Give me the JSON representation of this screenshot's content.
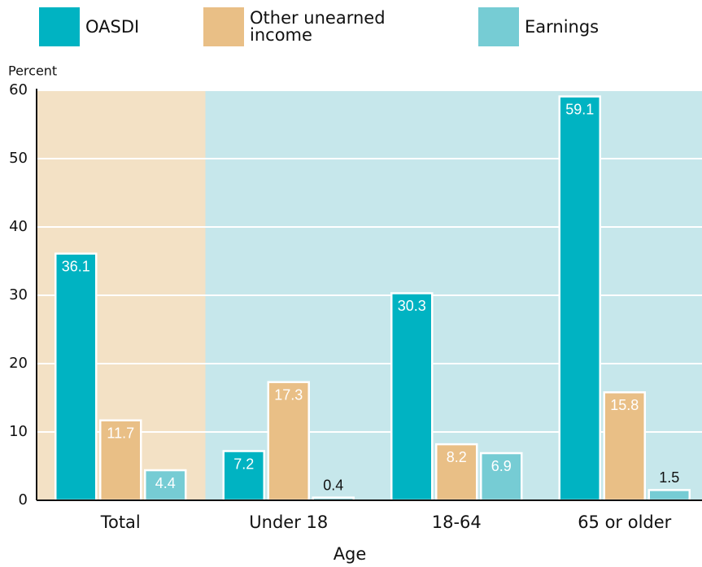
{
  "chart_data": {
    "type": "bar",
    "categories": [
      "Total",
      "Under 18",
      "18-64",
      "65 or older"
    ],
    "series": [
      {
        "name": "OASDI",
        "color": "#00b3c2",
        "values": [
          36.1,
          7.2,
          30.3,
          59.1
        ]
      },
      {
        "name": "Other unearned income",
        "color": "#e9bf86",
        "values": [
          11.7,
          17.3,
          8.2,
          15.8
        ]
      },
      {
        "name": "Earnings",
        "color": "#76ccd4",
        "values": [
          4.4,
          0.4,
          6.9,
          1.5
        ]
      }
    ],
    "ylabel": "Percent",
    "xlabel": "Age",
    "ylim": [
      0,
      60
    ],
    "yticks": [
      0,
      10,
      20,
      30,
      40,
      50,
      60
    ],
    "grid": true
  }
}
